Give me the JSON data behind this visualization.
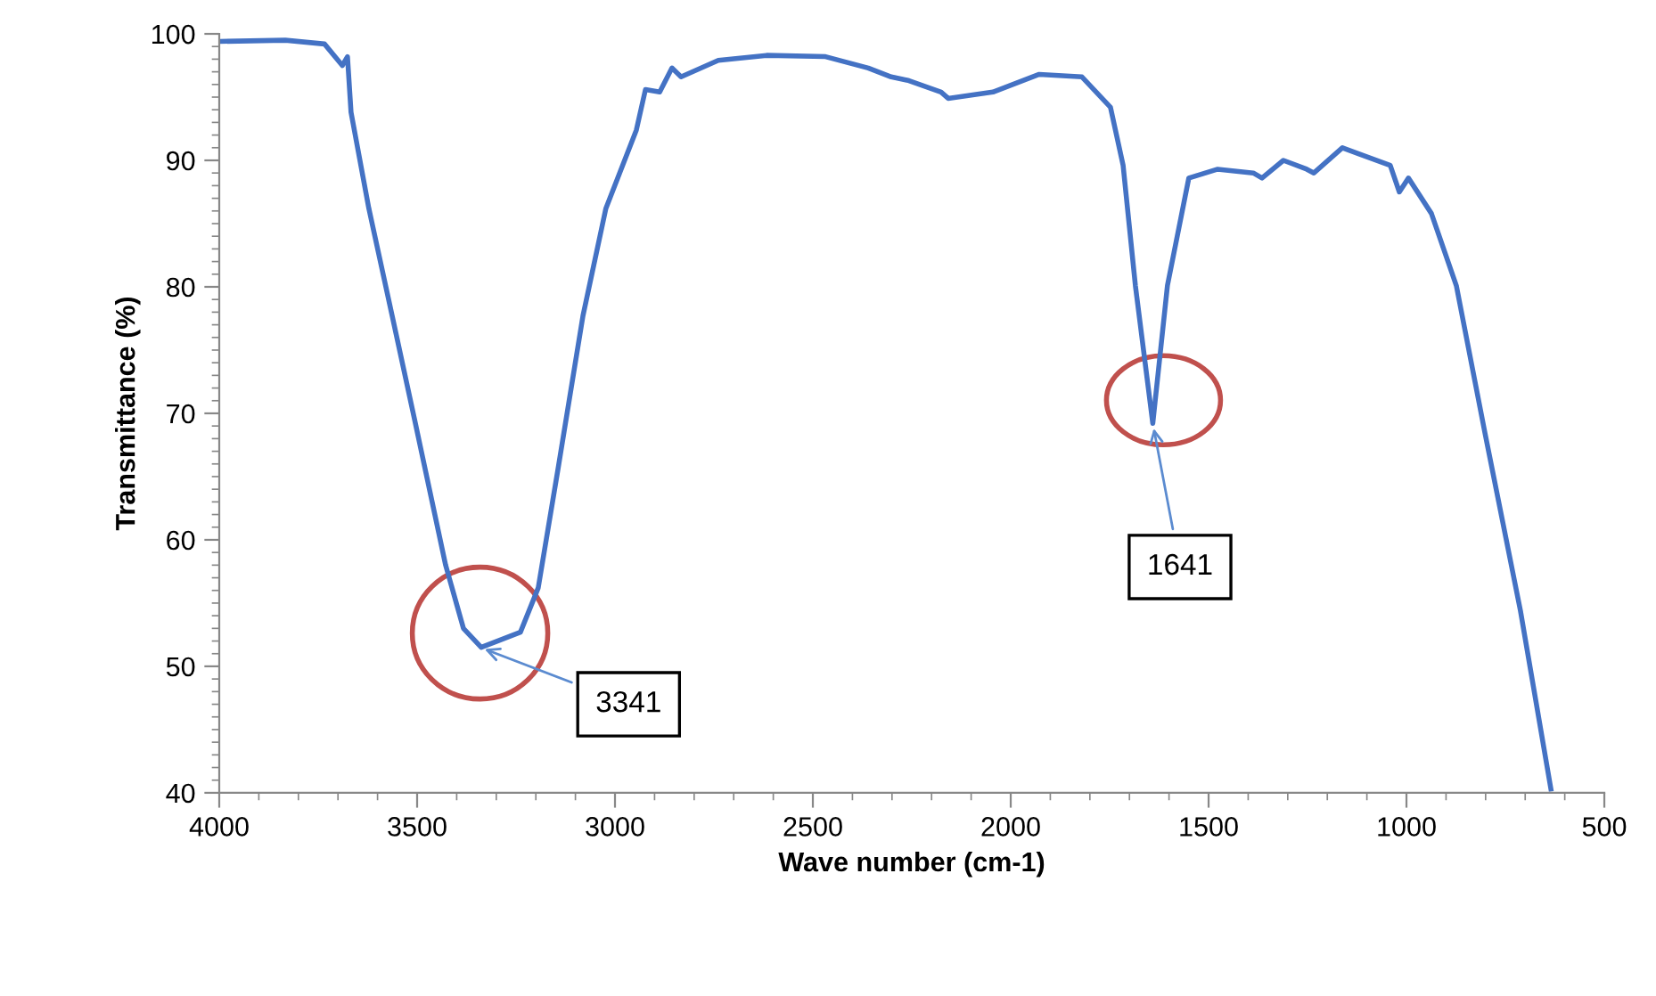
{
  "chart_data": {
    "type": "line",
    "xlabel": "Wave number (cm-1)",
    "ylabel": "Transmittance (%)",
    "xlim": [
      4000,
      500
    ],
    "xticks": [
      4000,
      3500,
      3000,
      2500,
      2000,
      1500,
      1000,
      500
    ],
    "ylim": [
      40,
      100
    ],
    "yticks": [
      40,
      50,
      60,
      70,
      80,
      90,
      100
    ],
    "grid": false,
    "legend": false,
    "marker": "none",
    "line_style": "solid",
    "series": [
      {
        "color": "#4472c4",
        "x": [
          4000,
          3833,
          3734,
          3689,
          3676,
          3667,
          3622,
          3563,
          3505,
          3428,
          3383,
          3338,
          3239,
          3194,
          3144,
          3081,
          3023,
          2946,
          2923,
          2887,
          2856,
          2833,
          2739,
          2617,
          2468,
          2360,
          2302,
          2257,
          2176,
          2158,
          2045,
          1928,
          1820,
          1748,
          1716,
          1685,
          1641,
          1604,
          1550,
          1477,
          1387,
          1365,
          1311,
          1252,
          1234,
          1162,
          1041,
          1018,
          995,
          937,
          874,
          802,
          712,
          635
        ],
        "values": [
          99.4,
          99.5,
          99.2,
          97.5,
          98.2,
          93.8,
          86.2,
          77.7,
          69.3,
          58.0,
          53.0,
          51.5,
          52.7,
          56.2,
          65.6,
          77.7,
          86.2,
          92.4,
          95.6,
          95.4,
          97.3,
          96.6,
          97.9,
          98.3,
          98.2,
          97.3,
          96.6,
          96.3,
          95.4,
          94.9,
          95.4,
          96.8,
          96.6,
          94.2,
          89.6,
          80.1,
          69.2,
          80.1,
          88.6,
          89.3,
          89.0,
          88.6,
          90.0,
          89.3,
          89.0,
          91.0,
          89.6,
          87.5,
          88.6,
          85.8,
          80.1,
          68.5,
          54.4,
          40.3
        ]
      }
    ],
    "annotations": [
      {
        "text": "3341",
        "x": 3341,
        "y": 51.5
      },
      {
        "text": "1641",
        "x": 1641,
        "y": 69.2
      }
    ]
  }
}
